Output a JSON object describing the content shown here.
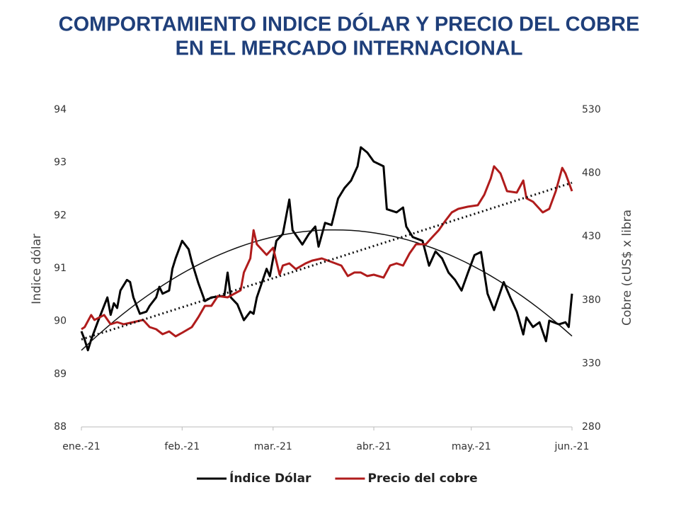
{
  "chart_data": {
    "type": "line",
    "title": [
      "COMPORTAMIENTO INDICE DÓLAR Y PRECIO DEL COBRE",
      "EN EL MERCADO INTERNACIONAL"
    ],
    "y_label": "Indice dólar",
    "y2_label": "Cobre (cUS$ x libra",
    "xlim": [
      0,
      151
    ],
    "xticks": [
      {
        "value": 0,
        "label": "ene.-21"
      },
      {
        "value": 31,
        "label": "feb.-21"
      },
      {
        "value": 59,
        "label": "mar.-21"
      },
      {
        "value": 90,
        "label": "abr.-21"
      },
      {
        "value": 120,
        "label": "may.-21"
      },
      {
        "value": 151,
        "label": "jun.-21"
      }
    ],
    "ylim": [
      88,
      94
    ],
    "yticks": [
      88,
      89,
      90,
      91,
      92,
      93,
      94
    ],
    "y2lim": [
      280,
      530
    ],
    "y2ticks": [
      280,
      330,
      380,
      430,
      480,
      530
    ],
    "legend": "bottom",
    "series": [
      {
        "name": "Índice Dólar",
        "color": "#000000",
        "axis": "y",
        "trendline": "polynomial",
        "x": [
          0,
          1,
          2,
          3,
          5,
          8,
          9,
          10,
          11,
          12,
          14,
          15,
          16,
          18,
          20,
          21,
          23,
          24,
          25,
          27,
          28,
          29,
          31,
          33,
          34,
          36,
          38,
          40,
          44,
          45,
          46,
          48,
          50,
          52,
          53,
          54,
          57,
          58,
          60,
          62,
          64,
          65,
          68,
          70,
          72,
          73,
          75,
          77,
          79,
          81,
          83,
          85,
          86,
          88,
          90,
          93,
          94,
          97,
          99,
          100,
          102,
          105,
          107,
          109,
          111,
          113,
          115,
          117,
          119,
          121,
          123,
          125,
          127,
          130,
          132,
          134,
          136,
          137,
          139,
          141,
          143,
          144,
          147,
          149,
          150,
          151
        ],
        "values": [
          89.81,
          89.65,
          89.45,
          89.65,
          89.98,
          90.45,
          90.12,
          90.34,
          90.25,
          90.58,
          90.78,
          90.74,
          90.45,
          90.14,
          90.18,
          90.29,
          90.45,
          90.65,
          90.52,
          90.58,
          90.99,
          91.19,
          91.52,
          91.36,
          91.12,
          90.72,
          90.38,
          90.45,
          90.48,
          90.92,
          90.45,
          90.32,
          90.02,
          90.18,
          90.14,
          90.45,
          90.99,
          90.85,
          91.52,
          91.65,
          92.3,
          91.72,
          91.45,
          91.65,
          91.79,
          91.41,
          91.86,
          91.82,
          92.32,
          92.52,
          92.66,
          92.93,
          93.29,
          93.19,
          93.02,
          92.93,
          92.12,
          92.06,
          92.15,
          91.79,
          91.59,
          91.52,
          91.05,
          91.32,
          91.19,
          90.92,
          90.78,
          90.58,
          90.92,
          91.25,
          91.31,
          90.52,
          90.21,
          90.74,
          90.45,
          90.18,
          89.75,
          90.07,
          89.89,
          89.98,
          89.62,
          90.01,
          89.94,
          89.98,
          89.89,
          90.52
        ]
      },
      {
        "name": "Precio del cobre",
        "color": "#b01c1c",
        "axis": "y2",
        "trendline": "linear",
        "x": [
          0,
          1,
          3,
          4,
          7,
          9,
          11,
          13,
          16,
          19,
          21,
          23,
          25,
          27,
          29,
          31,
          34,
          36,
          38,
          40,
          42,
          45,
          47,
          49,
          50,
          52,
          53,
          54,
          57,
          59,
          61,
          62,
          64,
          66,
          69,
          71,
          74,
          77,
          80,
          82,
          84,
          86,
          88,
          90,
          93,
          95,
          97,
          99,
          101,
          103,
          106,
          108,
          110,
          112,
          114,
          116,
          119,
          122,
          124,
          126,
          127,
          129,
          131,
          134,
          136,
          137,
          139,
          142,
          144,
          146,
          148,
          149,
          151
        ],
        "values": [
          357.0,
          358.7,
          368.2,
          364.3,
          368.2,
          360.9,
          362.6,
          360.9,
          362.6,
          364.3,
          358.7,
          357.0,
          353.1,
          355.3,
          351.4,
          354.2,
          358.7,
          366.5,
          375.4,
          375.4,
          383.2,
          382.1,
          384.9,
          387.7,
          401.7,
          412.8,
          435.1,
          424.0,
          415.6,
          421.2,
          400.0,
          407.2,
          408.9,
          404.4,
          408.9,
          411.1,
          412.8,
          410.0,
          407.2,
          398.9,
          401.7,
          401.7,
          398.9,
          400.0,
          397.7,
          407.2,
          408.9,
          407.2,
          416.7,
          424.0,
          424.0,
          429.6,
          435.1,
          442.4,
          449.1,
          451.9,
          453.6,
          454.7,
          463.0,
          475.9,
          485.4,
          479.8,
          465.8,
          464.7,
          474.2,
          460.2,
          457.5,
          449.1,
          451.9,
          465.8,
          484.2,
          479.8,
          465.8
        ]
      }
    ]
  }
}
